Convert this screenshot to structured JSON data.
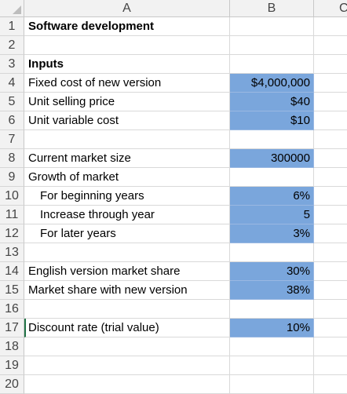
{
  "columns": [
    "A",
    "B",
    "C"
  ],
  "rows": [
    {
      "num": "1",
      "a": "Software development",
      "b": "",
      "style": "bold",
      "fill": false
    },
    {
      "num": "2",
      "a": "",
      "b": "",
      "style": "",
      "fill": false
    },
    {
      "num": "3",
      "a": "Inputs",
      "b": "",
      "style": "bold",
      "fill": false
    },
    {
      "num": "4",
      "a": "Fixed cost of new version",
      "b": "$4,000,000",
      "style": "",
      "fill": true
    },
    {
      "num": "5",
      "a": "Unit selling price",
      "b": "$40",
      "style": "",
      "fill": true
    },
    {
      "num": "6",
      "a": "Unit variable cost",
      "b": "$10",
      "style": "",
      "fill": true
    },
    {
      "num": "7",
      "a": "",
      "b": "",
      "style": "",
      "fill": false
    },
    {
      "num": "8",
      "a": "Current market size",
      "b": "300000",
      "style": "",
      "fill": true
    },
    {
      "num": "9",
      "a": "Growth of market",
      "b": "",
      "style": "",
      "fill": false
    },
    {
      "num": "10",
      "a": "For beginning years",
      "b": "6%",
      "style": "indent",
      "fill": true
    },
    {
      "num": "11",
      "a": "Increase through year",
      "b": "5",
      "style": "indent",
      "fill": true
    },
    {
      "num": "12",
      "a": "For later years",
      "b": "3%",
      "style": "indent",
      "fill": true
    },
    {
      "num": "13",
      "a": "",
      "b": "",
      "style": "",
      "fill": false
    },
    {
      "num": "14",
      "a": "English version market share",
      "b": "30%",
      "style": "",
      "fill": true
    },
    {
      "num": "15",
      "a": "Market share with new version",
      "b": "38%",
      "style": "",
      "fill": true
    },
    {
      "num": "16",
      "a": "",
      "b": "",
      "style": "",
      "fill": false
    },
    {
      "num": "17",
      "a": "Discount rate (trial value)",
      "b": "10%",
      "style": "selected",
      "fill": true
    },
    {
      "num": "18",
      "a": "",
      "b": "",
      "style": "",
      "fill": false
    },
    {
      "num": "19",
      "a": "",
      "b": "",
      "style": "",
      "fill": false
    },
    {
      "num": "20",
      "a": "",
      "b": "",
      "style": "",
      "fill": false
    }
  ],
  "colors": {
    "input_fill": "#7aa6dc",
    "header_bg": "#f2f2f2",
    "gridline": "#d9d9d9"
  }
}
